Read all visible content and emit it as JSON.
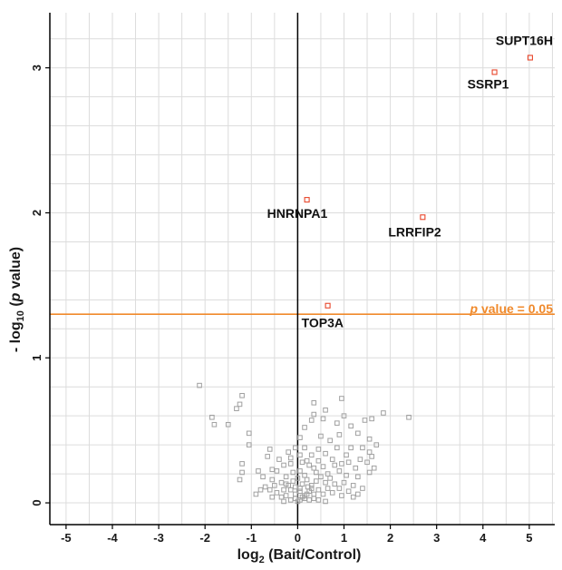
{
  "chart_data": {
    "type": "scatter",
    "title": "",
    "xlabel_prefix": "log",
    "xlabel_sub": "2",
    "xlabel_rest": " (Bait/Control)",
    "ylabel_prefix": "- log",
    "ylabel_sub": "10",
    "ylabel_open": " (",
    "ylabel_p": "p",
    "ylabel_rest": " value)",
    "xlim": [
      -5.35,
      5.55
    ],
    "ylim": [
      -0.15,
      3.38
    ],
    "x_ticks": [
      -5,
      -4,
      -3,
      -2,
      -1,
      0,
      1,
      2,
      3,
      4,
      5
    ],
    "y_ticks": [
      0,
      1,
      2,
      3
    ],
    "grid": true,
    "threshold": {
      "y": 1.301,
      "label_p": "p",
      "label_rest": " value = 0.05",
      "color": "#f08a2c"
    },
    "colors": {
      "significant": "#e8462b",
      "background": "#a0a0a0",
      "grid": "#dcdcdc",
      "axis": "#000000"
    },
    "significant_points": [
      {
        "name": "SUPT16H",
        "x": 5.02,
        "y": 3.07
      },
      {
        "name": "SSRP1",
        "x": 4.25,
        "y": 2.97
      },
      {
        "name": "HNRNPA1",
        "x": 0.2,
        "y": 2.09
      },
      {
        "name": "LRRFIP2",
        "x": 2.7,
        "y": 1.97
      },
      {
        "name": "TOP3A",
        "x": 0.65,
        "y": 1.36
      }
    ],
    "background_points": [
      [
        -2.12,
        0.81
      ],
      [
        -1.2,
        0.74
      ],
      [
        -1.25,
        0.68
      ],
      [
        -1.32,
        0.65
      ],
      [
        -1.85,
        0.59
      ],
      [
        -1.8,
        0.54
      ],
      [
        -1.5,
        0.54
      ],
      [
        -1.05,
        0.48
      ],
      [
        -1.05,
        0.4
      ],
      [
        -0.6,
        0.37
      ],
      [
        -0.65,
        0.32
      ],
      [
        -1.2,
        0.27
      ],
      [
        -1.2,
        0.21
      ],
      [
        -0.85,
        0.22
      ],
      [
        -1.25,
        0.16
      ],
      [
        -0.75,
        0.18
      ],
      [
        -0.55,
        0.23
      ],
      [
        -0.45,
        0.22
      ],
      [
        -0.3,
        0.26
      ],
      [
        -0.4,
        0.3
      ],
      [
        -0.2,
        0.35
      ],
      [
        -0.15,
        0.31
      ],
      [
        -0.05,
        0.38
      ],
      [
        0.05,
        0.33
      ],
      [
        0.15,
        0.52
      ],
      [
        0.3,
        0.57
      ],
      [
        0.35,
        0.61
      ],
      [
        0.55,
        0.58
      ],
      [
        0.6,
        0.64
      ],
      [
        0.35,
        0.69
      ],
      [
        0.95,
        0.72
      ],
      [
        0.85,
        0.55
      ],
      [
        1.0,
        0.6
      ],
      [
        1.15,
        0.53
      ],
      [
        0.9,
        0.47
      ],
      [
        1.3,
        0.48
      ],
      [
        1.45,
        0.57
      ],
      [
        1.6,
        0.58
      ],
      [
        1.85,
        0.62
      ],
      [
        2.4,
        0.59
      ],
      [
        1.55,
        0.44
      ],
      [
        1.7,
        0.4
      ],
      [
        1.4,
        0.38
      ],
      [
        1.55,
        0.35
      ],
      [
        1.6,
        0.32
      ],
      [
        1.35,
        0.3
      ],
      [
        1.5,
        0.28
      ],
      [
        1.65,
        0.24
      ],
      [
        1.55,
        0.21
      ],
      [
        1.3,
        0.18
      ],
      [
        1.25,
        0.24
      ],
      [
        0.95,
        0.27
      ],
      [
        0.75,
        0.3
      ],
      [
        0.6,
        0.34
      ],
      [
        0.45,
        0.37
      ],
      [
        0.5,
        0.46
      ],
      [
        0.7,
        0.43
      ],
      [
        0.85,
        0.38
      ],
      [
        1.05,
        0.33
      ],
      [
        1.15,
        0.38
      ],
      [
        1.1,
        0.28
      ],
      [
        0.9,
        0.22
      ],
      [
        0.55,
        0.25
      ],
      [
        0.4,
        0.21
      ],
      [
        0.25,
        0.26
      ],
      [
        0.15,
        0.19
      ],
      [
        0.05,
        0.22
      ],
      [
        -0.1,
        0.21
      ],
      [
        -0.25,
        0.18
      ],
      [
        -0.35,
        0.14
      ],
      [
        -0.5,
        0.12
      ],
      [
        -0.6,
        0.09
      ],
      [
        -0.45,
        0.07
      ],
      [
        -0.3,
        0.09
      ],
      [
        -0.2,
        0.12
      ],
      [
        -0.1,
        0.15
      ],
      [
        0.0,
        0.17
      ],
      [
        0.1,
        0.13
      ],
      [
        0.2,
        0.16
      ],
      [
        0.3,
        0.12
      ],
      [
        0.4,
        0.15
      ],
      [
        0.5,
        0.18
      ],
      [
        0.6,
        0.14
      ],
      [
        0.7,
        0.17
      ],
      [
        0.8,
        0.13
      ],
      [
        0.9,
        0.1
      ],
      [
        1.0,
        0.14
      ],
      [
        1.1,
        0.08
      ],
      [
        0.95,
        0.05
      ],
      [
        0.75,
        0.07
      ],
      [
        0.65,
        0.1
      ],
      [
        0.55,
        0.06
      ],
      [
        0.45,
        0.09
      ],
      [
        0.35,
        0.06
      ],
      [
        0.25,
        0.08
      ],
      [
        0.15,
        0.05
      ],
      [
        0.05,
        0.08
      ],
      [
        -0.05,
        0.06
      ],
      [
        -0.15,
        0.09
      ],
      [
        -0.25,
        0.05
      ],
      [
        -0.35,
        0.04
      ],
      [
        -0.55,
        0.04
      ],
      [
        -0.05,
        0.03
      ],
      [
        0.05,
        0.02
      ],
      [
        0.15,
        0.03
      ],
      [
        0.25,
        0.02
      ],
      [
        0.35,
        0.03
      ],
      [
        -0.15,
        0.02
      ],
      [
        0.0,
        0.01
      ],
      [
        0.1,
        0.04
      ],
      [
        0.2,
        0.06
      ],
      [
        0.3,
        0.1
      ],
      [
        -0.05,
        0.11
      ],
      [
        0.05,
        0.1
      ],
      [
        -0.7,
        0.11
      ],
      [
        -0.8,
        0.09
      ],
      [
        -0.9,
        0.06
      ],
      [
        0.2,
        0.29
      ],
      [
        0.3,
        0.33
      ],
      [
        0.15,
        0.38
      ],
      [
        0.05,
        0.45
      ],
      [
        1.2,
        0.12
      ],
      [
        1.3,
        0.06
      ],
      [
        1.4,
        0.1
      ],
      [
        1.2,
        0.04
      ],
      [
        -0.55,
        0.16
      ],
      [
        0.45,
        0.29
      ],
      [
        0.35,
        0.24
      ],
      [
        0.65,
        0.2
      ],
      [
        0.8,
        0.26
      ],
      [
        1.05,
        0.19
      ],
      [
        -0.15,
        0.27
      ],
      [
        0.1,
        0.28
      ],
      [
        0.22,
        0.11
      ],
      [
        -0.25,
        0.13
      ],
      [
        0.6,
        0.01
      ],
      [
        0.45,
        0.02
      ],
      [
        -0.3,
        0.01
      ]
    ]
  }
}
